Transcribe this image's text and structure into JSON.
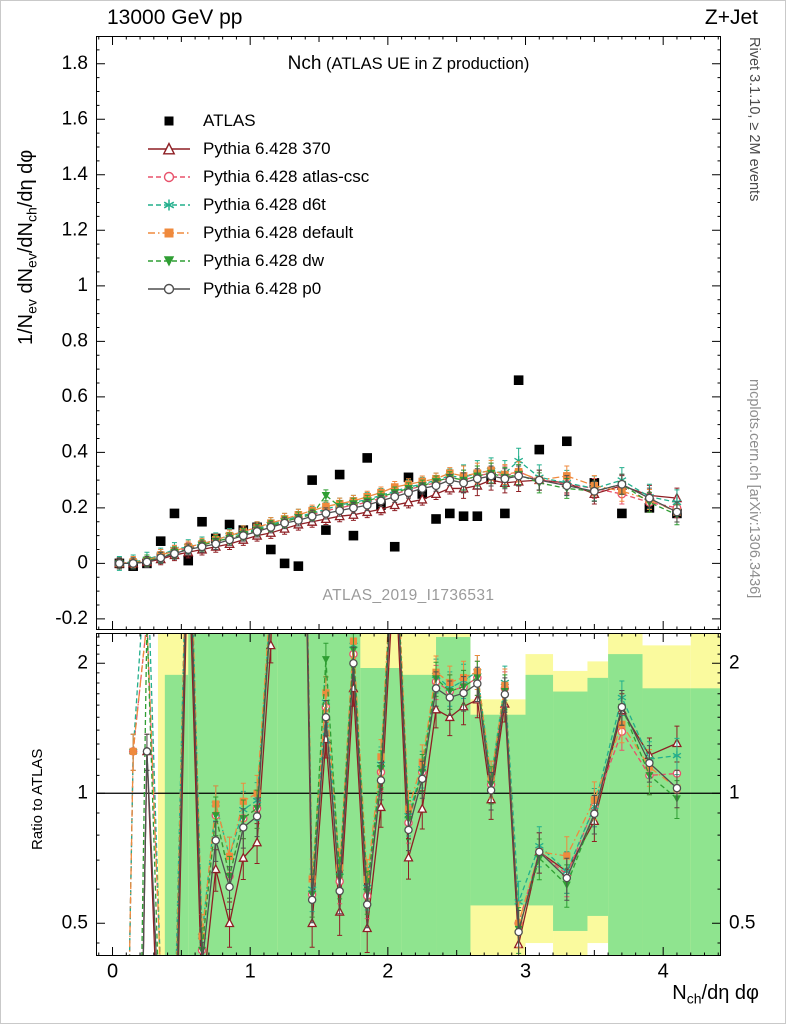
{
  "header": {
    "left": "13000 GeV pp",
    "right": "Z+Jet"
  },
  "side_labels": {
    "top": "Rivet 3.1.10, ≥ 2M events",
    "bottom": "mcplots.cern.ch [arXiv:1306.3436]"
  },
  "titles": {
    "main": "Nch",
    "sub": " (ATLAS UE in Z production)",
    "watermark": "ATLAS_2019_I1736531",
    "ratio_ylabel": "Ratio to ATLAS"
  },
  "axis_label_parts": {
    "ylabel_main": [
      [
        "1/N",
        false
      ],
      [
        "ev",
        true
      ],
      [
        " dN",
        false
      ],
      [
        "ev",
        true
      ],
      [
        "/dN",
        false
      ],
      [
        "ch",
        true
      ],
      [
        "/dη dφ",
        false
      ]
    ],
    "xlabel": [
      [
        "N",
        false
      ],
      [
        "ch",
        true
      ],
      [
        "/dη dφ",
        false
      ]
    ]
  },
  "chart_data": {
    "type": "scatter",
    "title": "Nch (ATLAS UE in Z production)",
    "xlabel": "N_ch/dη dφ",
    "ylabel": "1/N_ev dN_ev/dN_ch/dη dφ",
    "legend_position": "top-left",
    "grid": false,
    "xlim": [
      -0.12,
      4.42
    ],
    "xticks": [
      0,
      1,
      2,
      3,
      4
    ],
    "x": [
      0.05,
      0.15,
      0.25,
      0.35,
      0.45,
      0.55,
      0.65,
      0.75,
      0.85,
      0.95,
      1.05,
      1.15,
      1.25,
      1.35,
      1.45,
      1.55,
      1.65,
      1.75,
      1.85,
      1.95,
      2.05,
      2.15,
      2.25,
      2.35,
      2.45,
      2.55,
      2.65,
      2.75,
      2.85,
      2.95,
      3.1,
      3.3,
      3.5,
      3.7,
      3.9,
      4.1
    ],
    "main_panel": {
      "ylim": [
        -0.24,
        1.9
      ],
      "yticks": [
        -0.2,
        0,
        0.2,
        0.4,
        0.6,
        0.8,
        1,
        1.2,
        1.4,
        1.6,
        1.8
      ],
      "series": [
        {
          "name": "ATLAS",
          "color": "#000000",
          "marker": "square",
          "filled": true,
          "line": "none",
          "yerr": 0,
          "y": [
            0.0,
            -0.01,
            0.0,
            0.08,
            0.18,
            0.01,
            0.15,
            0.09,
            0.14,
            0.12,
            0.13,
            0.05,
            0.0,
            -0.01,
            0.3,
            0.12,
            0.32,
            0.1,
            0.38,
            0.21,
            0.06,
            0.31,
            0.25,
            0.16,
            0.18,
            0.17,
            0.17,
            0.31,
            0.18,
            0.66,
            0.41,
            0.44,
            0.29,
            0.18,
            0.2,
            0.18
          ]
        },
        {
          "name": "Pythia 6.428 370",
          "color": "#8e1f24",
          "marker": "triangle-up",
          "filled": false,
          "line": "solid",
          "yerr": 0.02,
          "y": [
            0.0,
            0.0,
            0.005,
            0.015,
            0.03,
            0.04,
            0.05,
            0.06,
            0.07,
            0.085,
            0.1,
            0.11,
            0.125,
            0.14,
            0.15,
            0.16,
            0.17,
            0.175,
            0.185,
            0.195,
            0.21,
            0.22,
            0.23,
            0.25,
            0.27,
            0.27,
            0.28,
            0.3,
            0.29,
            0.295,
            0.3,
            0.29,
            0.25,
            0.28,
            0.245,
            0.235
          ]
        },
        {
          "name": "Pythia 6.428 atlas-csc",
          "color": "#e8526b",
          "marker": "circle",
          "filled": false,
          "line": "dashed",
          "yerr": 0.02,
          "y": [
            0.0,
            0.005,
            0.01,
            0.03,
            0.045,
            0.055,
            0.065,
            0.08,
            0.09,
            0.105,
            0.12,
            0.135,
            0.15,
            0.165,
            0.175,
            0.19,
            0.2,
            0.21,
            0.22,
            0.235,
            0.25,
            0.265,
            0.28,
            0.29,
            0.31,
            0.3,
            0.315,
            0.325,
            0.315,
            0.33,
            0.3,
            0.285,
            0.27,
            0.25,
            0.22,
            0.2
          ]
        },
        {
          "name": "Pythia 6.428 d6t",
          "color": "#22af8c",
          "marker": "asterisk",
          "filled": false,
          "line": "dashed",
          "yerr": 0.025,
          "y": [
            0.0,
            0.005,
            0.015,
            0.03,
            0.05,
            0.06,
            0.07,
            0.085,
            0.1,
            0.11,
            0.125,
            0.14,
            0.155,
            0.17,
            0.18,
            0.195,
            0.21,
            0.22,
            0.23,
            0.245,
            0.26,
            0.275,
            0.285,
            0.3,
            0.315,
            0.31,
            0.325,
            0.335,
            0.325,
            0.37,
            0.31,
            0.29,
            0.27,
            0.3,
            0.24,
            0.22
          ]
        },
        {
          "name": "Pythia 6.428 default",
          "color": "#ef8a3d",
          "marker": "square",
          "filled": true,
          "line": "dashdot",
          "yerr": 0.02,
          "y": [
            0.0,
            0.005,
            0.01,
            0.03,
            0.045,
            0.06,
            0.07,
            0.085,
            0.1,
            0.115,
            0.13,
            0.145,
            0.16,
            0.175,
            0.19,
            0.205,
            0.215,
            0.225,
            0.24,
            0.255,
            0.275,
            0.285,
            0.295,
            0.305,
            0.325,
            0.315,
            0.325,
            0.335,
            0.32,
            0.33,
            0.3,
            0.315,
            0.28,
            0.26,
            0.23,
            0.185
          ]
        },
        {
          "name": "Pythia 6.428 dw",
          "color": "#2f9e33",
          "marker": "triangle-down",
          "filled": true,
          "line": "dashed",
          "yerr": 0.02,
          "y": [
            0.0,
            0.0,
            0.01,
            0.02,
            0.04,
            0.05,
            0.065,
            0.08,
            0.09,
            0.105,
            0.12,
            0.135,
            0.15,
            0.165,
            0.175,
            0.245,
            0.205,
            0.215,
            0.225,
            0.24,
            0.255,
            0.27,
            0.28,
            0.295,
            0.31,
            0.3,
            0.315,
            0.325,
            0.31,
            0.32,
            0.29,
            0.27,
            0.26,
            0.285,
            0.22,
            0.175
          ]
        },
        {
          "name": "Pythia 6.428 p0",
          "color": "#4f4f4f",
          "marker": "circle",
          "filled": false,
          "line": "solid",
          "yerr": 0.02,
          "y": [
            0.0,
            0.0,
            0.005,
            0.02,
            0.035,
            0.05,
            0.06,
            0.07,
            0.085,
            0.1,
            0.115,
            0.13,
            0.145,
            0.155,
            0.17,
            0.18,
            0.19,
            0.2,
            0.21,
            0.225,
            0.24,
            0.255,
            0.27,
            0.28,
            0.3,
            0.29,
            0.305,
            0.315,
            0.305,
            0.315,
            0.3,
            0.28,
            0.26,
            0.285,
            0.235,
            0.185
          ]
        }
      ]
    },
    "ratio_panel": {
      "yscale": "log",
      "ylim": [
        0.42,
        2.35
      ],
      "yticks": [
        0.5,
        1,
        2
      ],
      "reference": "ATLAS",
      "ref_line": 1,
      "colors": {
        "outer_band": "#fafa9e",
        "inner_band": "#8fe48f"
      },
      "outer_band_steps": [
        [
          0.33,
          0.55,
          0.35,
          2.45
        ],
        [
          0.55,
          1.2,
          0.33,
          2.45
        ],
        [
          1.2,
          1.8,
          0.33,
          2.45
        ],
        [
          1.8,
          2.1,
          0.33,
          2.45
        ],
        [
          2.1,
          2.35,
          0.33,
          2.45
        ],
        [
          2.35,
          2.6,
          0.33,
          2.45
        ],
        [
          2.6,
          3.0,
          0.42,
          1.65
        ],
        [
          3.0,
          3.2,
          0.45,
          2.1
        ],
        [
          3.2,
          3.45,
          0.42,
          1.92
        ],
        [
          3.45,
          3.6,
          0.45,
          2.02
        ],
        [
          3.6,
          3.85,
          0.33,
          2.45
        ],
        [
          3.85,
          4.2,
          0.35,
          2.2
        ],
        [
          4.2,
          4.45,
          0.33,
          2.45
        ]
      ],
      "inner_band_steps": [
        [
          0.38,
          0.55,
          0.38,
          1.88
        ],
        [
          0.55,
          1.2,
          0.36,
          2.45
        ],
        [
          1.2,
          1.8,
          0.36,
          2.45
        ],
        [
          1.8,
          2.1,
          0.36,
          1.95
        ],
        [
          2.1,
          2.35,
          0.36,
          1.88
        ],
        [
          2.35,
          2.6,
          0.36,
          2.3
        ],
        [
          2.6,
          3.0,
          0.55,
          1.52
        ],
        [
          3.0,
          3.2,
          0.55,
          1.88
        ],
        [
          3.2,
          3.45,
          0.48,
          1.72
        ],
        [
          3.45,
          3.6,
          0.52,
          1.85
        ],
        [
          3.6,
          3.85,
          0.38,
          2.1
        ],
        [
          3.85,
          4.2,
          0.4,
          1.75
        ],
        [
          4.2,
          4.45,
          0.38,
          1.75
        ]
      ]
    }
  }
}
